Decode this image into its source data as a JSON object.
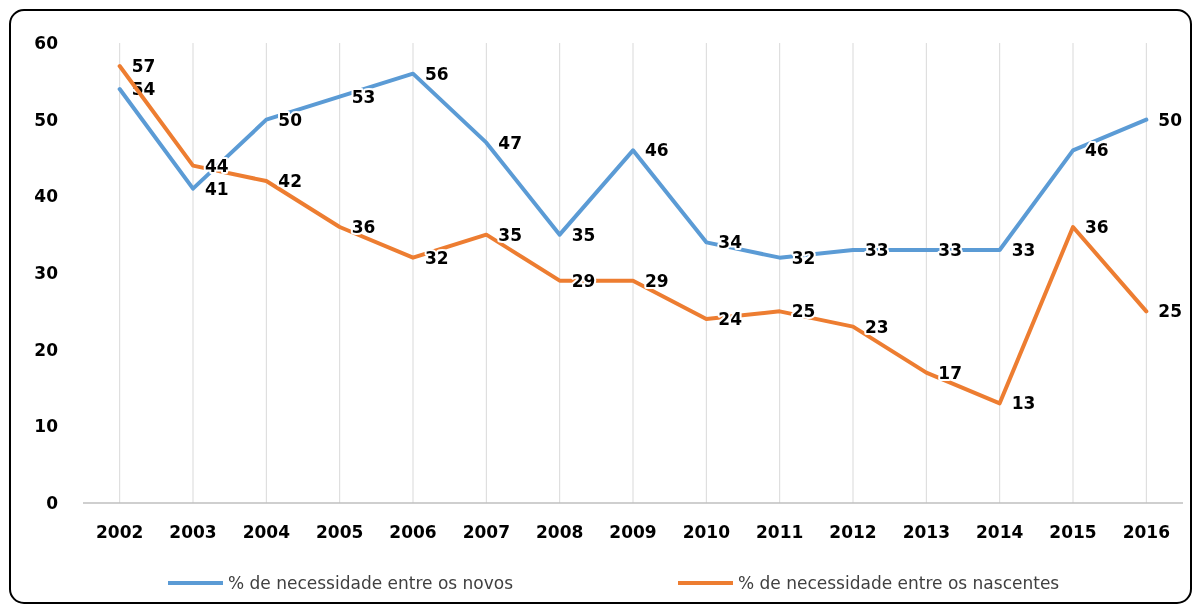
{
  "chart_data": {
    "type": "line",
    "categories": [
      "2002",
      "2003",
      "2004",
      "2005",
      "2006",
      "2007",
      "2008",
      "2009",
      "2010",
      "2011",
      "2012",
      "2013",
      "2014",
      "2015",
      "2016"
    ],
    "series": [
      {
        "name": "% de necessidade entre os novos",
        "color": "#5b9bd5",
        "values": [
          54,
          41,
          50,
          53,
          56,
          47,
          35,
          46,
          34,
          32,
          33,
          33,
          33,
          46,
          50
        ]
      },
      {
        "name": "% de necessidade entre os nascentes",
        "color": "#ed7d31",
        "values": [
          57,
          44,
          42,
          36,
          32,
          35,
          29,
          29,
          24,
          25,
          23,
          17,
          13,
          36,
          25
        ]
      }
    ],
    "ylim": [
      0,
      60
    ],
    "yticks": [
      0,
      10,
      20,
      30,
      40,
      50,
      60
    ],
    "grid": "x",
    "legend": "bottom",
    "data_labels": true,
    "marker": "none",
    "line_style": "solid"
  }
}
